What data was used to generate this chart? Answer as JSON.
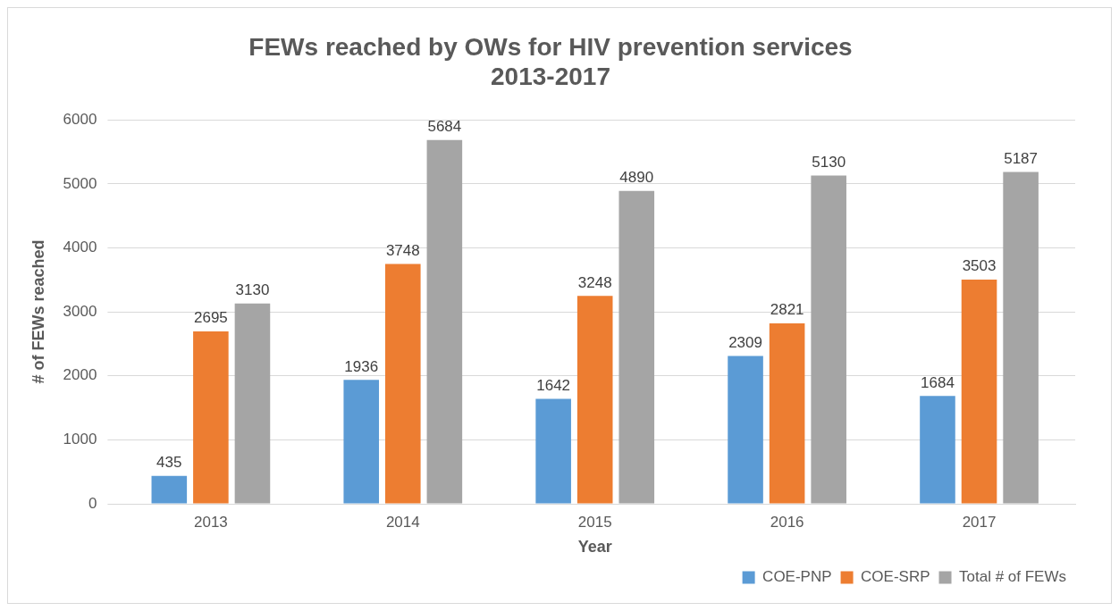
{
  "chart_data": {
    "type": "bar",
    "title": "FEWs reached by OWs for HIV prevention services\n2013-2017",
    "xlabel": "Year",
    "ylabel": "# of FEWs reached",
    "categories": [
      "2013",
      "2014",
      "2015",
      "2016",
      "2017"
    ],
    "series": [
      {
        "name": "COE-PNP",
        "color": "#5b9bd5",
        "values": [
          435,
          1936,
          1642,
          2309,
          1684
        ]
      },
      {
        "name": "COE-SRP",
        "color": "#ed7d31",
        "values": [
          2695,
          3748,
          3248,
          2821,
          3503
        ]
      },
      {
        "name": "Total # of FEWs",
        "color": "#a5a5a5",
        "values": [
          3130,
          5684,
          4890,
          5130,
          5187
        ]
      }
    ],
    "ylim": [
      0,
      6000
    ],
    "yticks": [
      0,
      1000,
      2000,
      3000,
      4000,
      5000,
      6000
    ],
    "grid": "y",
    "legend": "bottom",
    "data_labels": true
  }
}
